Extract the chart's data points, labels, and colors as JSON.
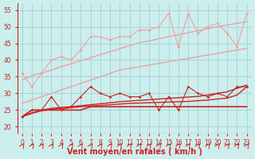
{
  "x": [
    0,
    1,
    2,
    3,
    4,
    5,
    6,
    7,
    8,
    9,
    10,
    11,
    12,
    13,
    14,
    15,
    16,
    17,
    18,
    19,
    20,
    21,
    22,
    23
  ],
  "pink_jagged": [
    36,
    32,
    36,
    40,
    41,
    40,
    43,
    47,
    47,
    46,
    47,
    47,
    49,
    49,
    50,
    54,
    44,
    54,
    48,
    50,
    51,
    48,
    44,
    54
  ],
  "pink_trend1": [
    34,
    35.3,
    36.1,
    37.0,
    38.0,
    38.9,
    39.8,
    40.7,
    41.6,
    42.5,
    43.4,
    44.3,
    45.2,
    45.7,
    46.4,
    47.0,
    47.6,
    48.2,
    48.8,
    49.4,
    50.0,
    50.5,
    51.0,
    51.5
  ],
  "pink_trend2": [
    27,
    28.0,
    29.0,
    30.0,
    31.0,
    32.0,
    33.0,
    34.0,
    35.0,
    36.0,
    37.0,
    37.5,
    38.0,
    38.5,
    39.0,
    39.5,
    40.0,
    40.5,
    41.0,
    41.5,
    42.0,
    42.5,
    43.0,
    43.5
  ],
  "red_jagged": [
    23,
    25,
    25,
    29,
    25,
    26,
    29,
    32,
    30,
    29,
    30,
    29,
    29,
    30,
    25,
    29,
    25,
    32,
    30,
    29,
    30,
    29,
    32,
    32
  ],
  "red_trend1": [
    23,
    24.2,
    25.0,
    25.5,
    25.8,
    26.0,
    26.3,
    26.6,
    26.9,
    27.2,
    27.5,
    27.7,
    27.9,
    28.1,
    28.3,
    28.5,
    28.7,
    28.9,
    29.1,
    29.5,
    30.0,
    30.5,
    31.5,
    32.5
  ],
  "red_trend2": [
    23,
    24.0,
    24.8,
    25.2,
    25.5,
    25.7,
    26.0,
    26.2,
    26.4,
    26.6,
    26.8,
    27.0,
    27.1,
    27.2,
    27.3,
    27.4,
    27.5,
    27.6,
    27.8,
    28.0,
    28.3,
    28.6,
    29.5,
    32.0
  ],
  "red_flat": [
    23,
    25,
    25,
    25,
    25,
    25,
    25,
    26,
    26,
    26,
    26,
    26,
    26,
    26,
    26,
    26,
    26,
    26,
    26,
    26,
    26,
    26,
    26,
    26
  ],
  "bg_color": "#cceeed",
  "grid_color": "#99cccc",
  "pink_color": "#f0a0a0",
  "red_color": "#cc2222",
  "xlabel": "Vent moyen/en rafales ( km/h )",
  "ylim": [
    18,
    57
  ],
  "yticks": [
    20,
    25,
    30,
    35,
    40,
    45,
    50,
    55
  ],
  "xticks": [
    0,
    1,
    2,
    3,
    4,
    5,
    6,
    7,
    8,
    9,
    10,
    11,
    12,
    13,
    14,
    15,
    16,
    17,
    18,
    19,
    20,
    21,
    22,
    23
  ],
  "tick_fontsize": 5.5,
  "label_fontsize": 7
}
